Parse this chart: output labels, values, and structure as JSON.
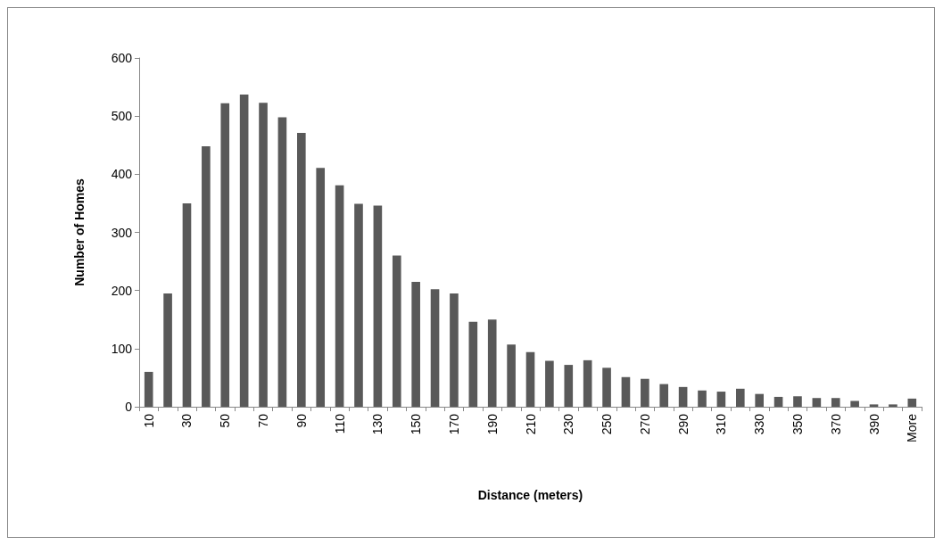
{
  "chart_data": {
    "type": "bar",
    "xlabel": "Distance (meters)",
    "ylabel": "Number of Homes",
    "categories": [
      "10",
      null,
      "30",
      null,
      "50",
      null,
      "70",
      null,
      "90",
      null,
      "110",
      null,
      "130",
      null,
      "150",
      null,
      "170",
      null,
      "190",
      null,
      "210",
      null,
      "230",
      null,
      "250",
      null,
      "270",
      null,
      "290",
      null,
      "310",
      null,
      "330",
      null,
      "350",
      null,
      "370",
      null,
      "390",
      null,
      "More"
    ],
    "values": [
      60,
      195,
      350,
      448,
      522,
      537,
      523,
      498,
      471,
      411,
      381,
      349,
      346,
      260,
      215,
      202,
      195,
      146,
      150,
      107,
      94,
      79,
      72,
      80,
      67,
      51,
      48,
      39,
      34,
      28,
      26,
      31,
      22,
      17,
      18,
      15,
      15,
      10,
      4,
      4,
      14
    ],
    "color": "#595959",
    "ylim": [
      0,
      600
    ],
    "yticks": [
      0,
      100,
      200,
      300,
      400,
      500,
      600
    ],
    "grid": false
  }
}
